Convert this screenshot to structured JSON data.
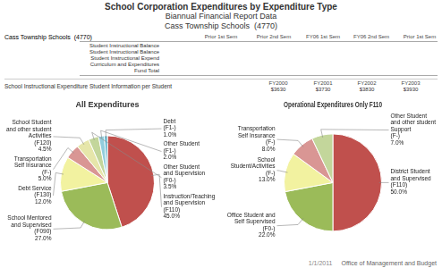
{
  "title": "School Corporation Expenditures by Expenditure Type",
  "subtitle": [
    "Biannual Financial Report Data",
    "Cass Township Schools  (4770)"
  ],
  "annotations": {
    "school_label": "Cass Township Schools  (4770)",
    "column_headers": [
      "Prior 1st Sem",
      "Prior 2nd Sem",
      "FY06 1st Sem",
      "FY06 2nd Sem",
      "Prior 1st Sem"
    ],
    "row_labels": [
      "Student Instructional Balance",
      "Student Instructional Balance",
      "Student Instructional Expend",
      "Curriculum and Expenditures",
      "Fund Total"
    ],
    "expenditure_heading": "School Instructional Expenditure Student Information per Student",
    "year_headers": [
      "FY2000",
      "FY2001",
      "FY2002",
      "FY2003"
    ],
    "year_values": [
      "$3630",
      "$3730",
      "$3830",
      "$3930"
    ],
    "date": "1/1/2011",
    "footer": "Office of Management and Budget"
  },
  "chart_data": [
    {
      "type": "pie",
      "title": "All Expenditures",
      "categories": [
        "Instruction/Teaching\nand Supervision\n(F110)",
        "School Mentored\nand Supervised\n(F090)",
        "Debt Service\n(F130)",
        "Transportation\nSelf Insurance\n(F-)",
        "School Student\nand other student\nActivities\n(F120)",
        "Other Student\nand Supervision\n(F0-)",
        "Other Student\n(F1-)",
        "Debt\n(F1-)"
      ],
      "values": [
        45.0,
        27.0,
        12.0,
        5.0,
        4.5,
        3.5,
        2.0,
        1.0
      ],
      "value_labels": [
        "45.0%",
        "27.0%",
        "12.0%",
        "5.0%",
        "4.5%",
        "3.5%",
        "2.0%",
        "1.0%"
      ],
      "colors": [
        "#c0504d",
        "#9bbb59",
        "#f2f2a0",
        "#d99694",
        "#e6e6aa",
        "#c3d69b",
        "#92cddc",
        "#4bacc6"
      ],
      "data_labels": true
    },
    {
      "type": "pie",
      "title": "Operational Expenditures Only F110",
      "categories": [
        "District Student\nand Supervised\n(F110)",
        "Office Student and\nSelf Supervised\n(F0-)",
        "School\nStudent/Activities\n(F-)",
        "Transportation\nSelf Insurance\n(F-)",
        "Other Student\nand other student\nSupport\n(F-)"
      ],
      "values": [
        50.0,
        22.0,
        13.0,
        8.0,
        7.0
      ],
      "value_labels": [
        "50.0%",
        "22.0%",
        "13.0%",
        "8.0%",
        "7.0%"
      ],
      "colors": [
        "#c0504d",
        "#9bbb59",
        "#f2f2a0",
        "#d99694",
        "#c3d69b"
      ],
      "data_labels": true
    }
  ]
}
